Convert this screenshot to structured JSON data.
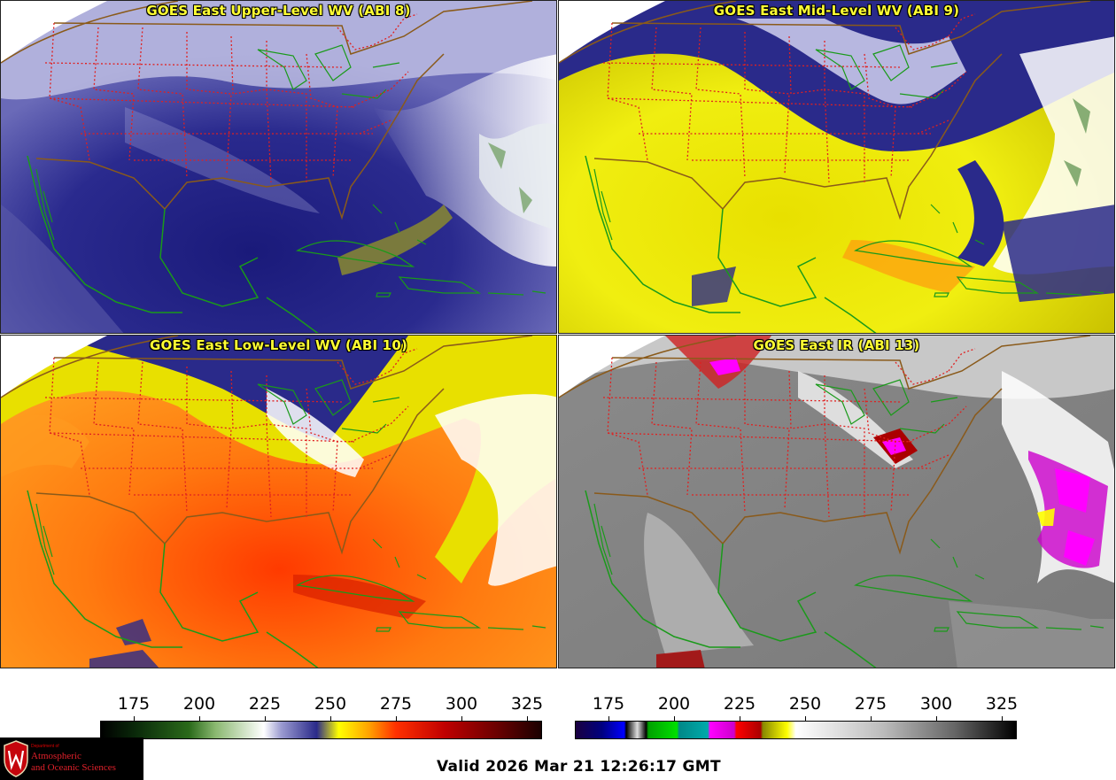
{
  "panels": [
    {
      "id": "p1",
      "title": "GOES East Upper-Level WV (ABI 8)"
    },
    {
      "id": "p2",
      "title": "GOES East Mid-Level WV (ABI 9)"
    },
    {
      "id": "p3",
      "title": "GOES East Low-Level WV (ABI 10)"
    },
    {
      "id": "p4",
      "title": "GOES East IR (ABI 13)"
    }
  ],
  "colorbar_left": {
    "ticks": [
      "175",
      "200",
      "225",
      "250",
      "275",
      "300",
      "325"
    ]
  },
  "colorbar_right": {
    "ticks": [
      "175",
      "200",
      "225",
      "250",
      "275",
      "300",
      "325"
    ]
  },
  "logo": {
    "dept": "Department of",
    "line1": "Atmospheric",
    "line2": "and Oceanic Sciences"
  },
  "valid_time": "Valid 2026 Mar 21 12:26:17 GMT",
  "colors": {
    "title": "#ffff33",
    "state_lines": "#e02020",
    "coast_lines": "#1a9a1a",
    "border_lines": "#8a5a1a"
  }
}
